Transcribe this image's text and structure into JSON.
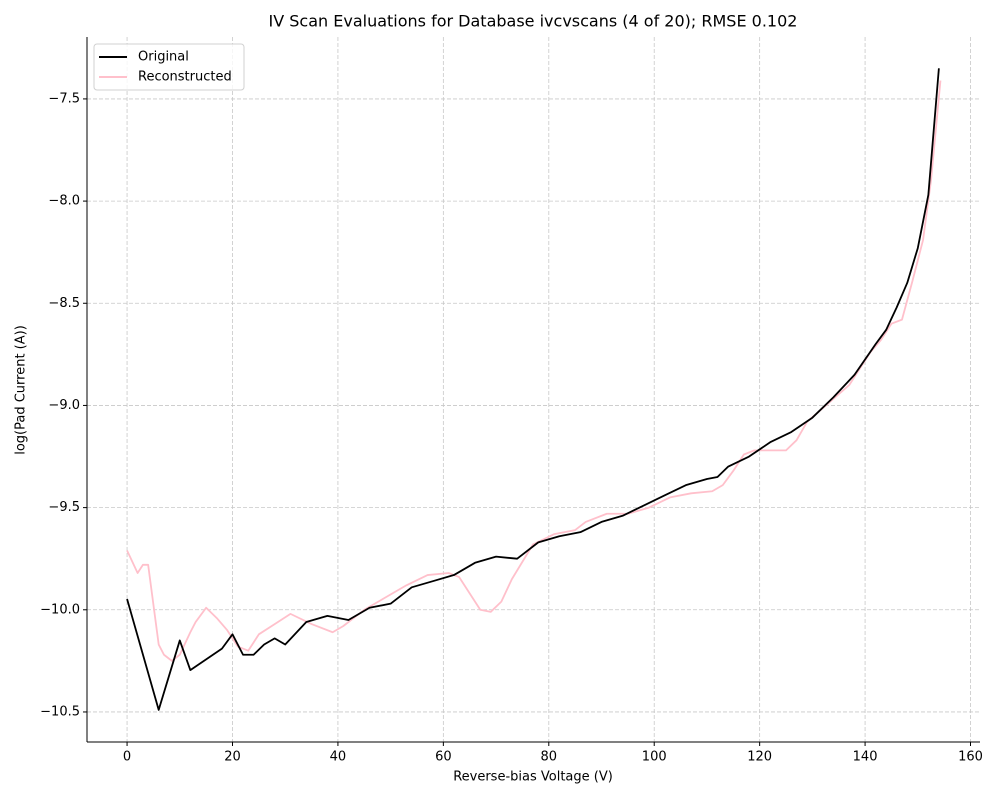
{
  "chart_data": {
    "type": "line",
    "title": "IV Scan Evaluations for Database ivcvscans (4 of 20); RMSE 0.102",
    "x_label": "Reverse-bias Voltage (V)",
    "y_label": "log(Pad Current (A))",
    "xlim": [
      -7.6,
      161.8
    ],
    "ylim": [
      -10.647,
      -7.197
    ],
    "xticks": [
      0,
      20,
      40,
      60,
      80,
      100,
      120,
      140,
      160
    ],
    "yticks": [
      {
        "value": -10.5,
        "label": "−10.5"
      },
      {
        "value": -10.0,
        "label": "−10.0"
      },
      {
        "value": -9.5,
        "label": "−9.5"
      },
      {
        "value": -9.0,
        "label": "−9.0"
      },
      {
        "value": -8.5,
        "label": "−8.5"
      },
      {
        "value": -8.0,
        "label": "−8.0"
      },
      {
        "value": -7.5,
        "label": "−7.5"
      }
    ],
    "grid": true,
    "legend": "upper-left",
    "series": [
      {
        "name": "Original",
        "color": "#000000",
        "x": [
          0,
          6,
          10,
          12,
          18,
          20,
          22,
          24,
          26,
          28,
          30,
          34,
          38,
          42,
          46,
          50,
          54,
          58,
          62,
          66,
          70,
          74,
          78,
          82,
          86,
          90,
          94,
          98,
          102,
          106,
          110,
          112,
          114,
          118,
          122,
          126,
          130,
          134,
          138,
          142,
          144,
          146,
          148,
          150,
          152,
          154
        ],
        "values": [
          -9.947,
          -10.49,
          -10.15,
          -10.295,
          -10.19,
          -10.12,
          -10.22,
          -10.22,
          -10.17,
          -10.14,
          -10.17,
          -10.06,
          -10.03,
          -10.05,
          -9.99,
          -9.97,
          -9.89,
          -9.86,
          -9.83,
          -9.77,
          -9.74,
          -9.75,
          -9.67,
          -9.64,
          -9.62,
          -9.57,
          -9.54,
          -9.49,
          -9.44,
          -9.39,
          -9.36,
          -9.35,
          -9.3,
          -9.25,
          -9.18,
          -9.13,
          -9.06,
          -8.96,
          -8.85,
          -8.7,
          -8.63,
          -8.52,
          -8.4,
          -8.23,
          -7.97,
          -7.35
        ]
      },
      {
        "name": "Reconstructed",
        "color": "#ffc0cb",
        "x": [
          0,
          2,
          3,
          4,
          6,
          7,
          8.5,
          10,
          12,
          13,
          15,
          17,
          19,
          21,
          23,
          25,
          28,
          31,
          35,
          39,
          41,
          45,
          49,
          53,
          57,
          61,
          63,
          67,
          69,
          71,
          73,
          77,
          81,
          85,
          87,
          91,
          95,
          99,
          103,
          107,
          111,
          113,
          115,
          117,
          119,
          121,
          125,
          127,
          129,
          133,
          137,
          141,
          143,
          145,
          147,
          149,
          151,
          152.5,
          154.3
        ],
        "values": [
          -9.71,
          -9.82,
          -9.78,
          -9.78,
          -10.17,
          -10.22,
          -10.25,
          -10.22,
          -10.11,
          -10.06,
          -9.99,
          -10.04,
          -10.1,
          -10.18,
          -10.2,
          -10.12,
          -10.07,
          -10.02,
          -10.07,
          -10.11,
          -10.08,
          -10.0,
          -9.94,
          -9.88,
          -9.83,
          -9.82,
          -9.84,
          -10.0,
          -10.01,
          -9.96,
          -9.85,
          -9.68,
          -9.63,
          -9.61,
          -9.57,
          -9.53,
          -9.53,
          -9.5,
          -9.45,
          -9.43,
          -9.42,
          -9.39,
          -9.32,
          -9.24,
          -9.22,
          -9.22,
          -9.22,
          -9.17,
          -9.08,
          -8.99,
          -8.9,
          -8.74,
          -8.68,
          -8.6,
          -8.58,
          -8.39,
          -8.19,
          -7.9,
          -7.41
        ]
      }
    ]
  }
}
